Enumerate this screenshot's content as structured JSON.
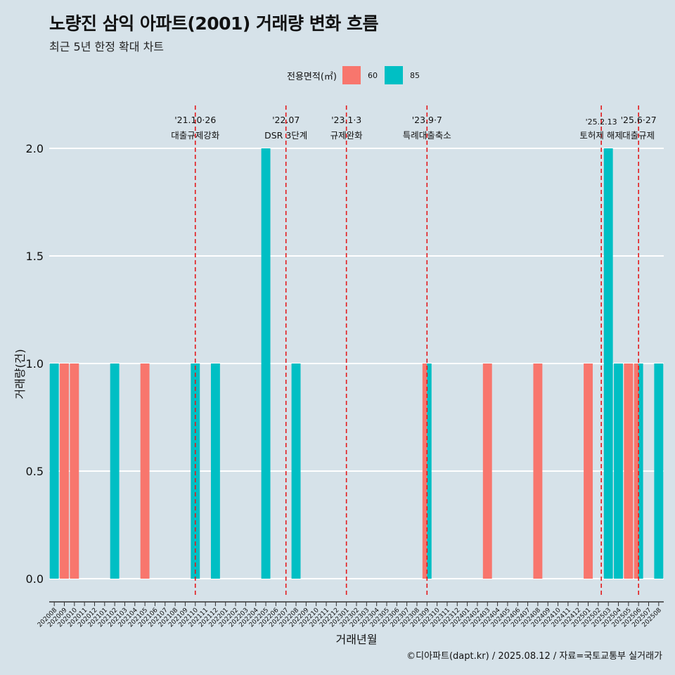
{
  "header": {
    "title": "노량진 삼익 아파트(2001) 거래량 변화 흐름",
    "subtitle": "최근 5년 한정 확대 차트"
  },
  "legend": {
    "title": "전용면적(㎡)",
    "items": [
      {
        "label": "60",
        "color": "#F8766D"
      },
      {
        "label": "85",
        "color": "#00BFC4"
      }
    ]
  },
  "footer": "©디아파트(dapt.kr) / 2025.08.12 / 자료=국토교통부 실거래가",
  "chart_data": {
    "type": "bar",
    "xlabel": "거래년월",
    "ylabel": "거래량(건)",
    "ylim": [
      0,
      2
    ],
    "yticks": [
      "0.0",
      "0.5",
      "1.0",
      "1.5",
      "2.0"
    ],
    "grid": true,
    "legend_position": "top",
    "categories": [
      "202008",
      "202009",
      "202010",
      "202011",
      "202012",
      "202101",
      "202102",
      "202103",
      "202104",
      "202105",
      "202106",
      "202107",
      "202108",
      "202109",
      "202110",
      "202111",
      "202112",
      "202201",
      "202202",
      "202203",
      "202204",
      "202205",
      "202206",
      "202207",
      "202208",
      "202209",
      "202210",
      "202211",
      "202212",
      "202301",
      "202302",
      "202303",
      "202304",
      "202305",
      "202306",
      "202307",
      "202308",
      "202309",
      "202310",
      "202311",
      "202312",
      "202401",
      "202402",
      "202403",
      "202404",
      "202405",
      "202406",
      "202407",
      "202408",
      "202409",
      "202410",
      "202411",
      "202412",
      "202501",
      "202502",
      "202503",
      "202504",
      "202505",
      "202506",
      "202507",
      "202508"
    ],
    "series": [
      {
        "name": "60",
        "color": "#F8766D",
        "points": [
          {
            "x": "202009",
            "y": 1
          },
          {
            "x": "202010",
            "y": 1
          },
          {
            "x": "202105",
            "y": 1
          },
          {
            "x": "202309",
            "y": 1
          },
          {
            "x": "202403",
            "y": 1
          },
          {
            "x": "202408",
            "y": 1
          },
          {
            "x": "202501",
            "y": 1
          },
          {
            "x": "202505",
            "y": 1
          },
          {
            "x": "202506",
            "y": 1
          }
        ]
      },
      {
        "name": "85",
        "color": "#00BFC4",
        "points": [
          {
            "x": "202008",
            "y": 1
          },
          {
            "x": "202102",
            "y": 1
          },
          {
            "x": "202110",
            "y": 1
          },
          {
            "x": "202112",
            "y": 1
          },
          {
            "x": "202205",
            "y": 2
          },
          {
            "x": "202208",
            "y": 1
          },
          {
            "x": "202309",
            "y": 1
          },
          {
            "x": "202503",
            "y": 2
          },
          {
            "x": "202504",
            "y": 1
          },
          {
            "x": "202506",
            "y": 1
          },
          {
            "x": "202508",
            "y": 1
          }
        ]
      }
    ],
    "events": [
      {
        "x": "202110",
        "date": "'21.10·26",
        "label": "대출규제강화",
        "color": "#E31A1C"
      },
      {
        "x": "202207",
        "date": "'22.07",
        "label": "DSR 3단계",
        "color": "#E31A1C"
      },
      {
        "x": "202301",
        "date": "'23.1·3",
        "label": "규제완화",
        "color": "#E31A1C"
      },
      {
        "x": "202309",
        "date": "'23.9·7",
        "label": "특례대출축소",
        "color": "#E31A1C"
      },
      {
        "x": "202502",
        "date": "'25.2.13",
        "label": "토허제 해제",
        "color": "#E31A1C",
        "small": true
      },
      {
        "x": "202506",
        "date": "'25.6·27",
        "label": "대출규제",
        "color": "#E31A1C"
      }
    ]
  }
}
